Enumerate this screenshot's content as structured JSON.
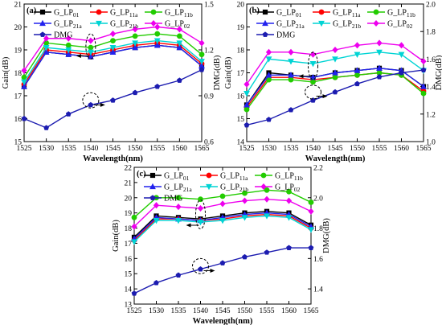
{
  "chart_data": [
    {
      "type": "line",
      "panel_label": "(a)",
      "xlabel": "Wavelength(nm)",
      "ylabel": "Gain(dB)",
      "y2label": "DMG(dB)",
      "x": [
        1525,
        1530,
        1535,
        1540,
        1545,
        1550,
        1555,
        1560,
        1565
      ],
      "xlim": [
        1525,
        1565
      ],
      "ylim": [
        15,
        21
      ],
      "y2lim": [
        0.6,
        1.5
      ],
      "yticks": [
        15,
        16,
        17,
        18,
        19,
        20,
        21
      ],
      "y2ticks": [
        0.6,
        0.9,
        1.2,
        1.5
      ],
      "legend_position": "top",
      "series": [
        {
          "name": "G_LP01",
          "color": "#000000",
          "marker": "square",
          "axis": "left",
          "values": [
            17.4,
            18.9,
            18.8,
            18.7,
            18.9,
            19.1,
            19.2,
            19.1,
            18.3
          ]
        },
        {
          "name": "G_LP11a",
          "color": "#ff0000",
          "marker": "circle",
          "axis": "left",
          "values": [
            17.5,
            19.0,
            18.9,
            18.8,
            19.0,
            19.2,
            19.3,
            19.2,
            18.4
          ]
        },
        {
          "name": "G_LP11b",
          "color": "#22cc00",
          "marker": "circle",
          "axis": "left",
          "values": [
            17.8,
            19.3,
            19.2,
            19.1,
            19.4,
            19.6,
            19.7,
            19.6,
            18.8
          ]
        },
        {
          "name": "G_LP21a",
          "color": "#2222ee",
          "marker": "triangle-up",
          "axis": "left",
          "values": [
            17.4,
            18.9,
            18.8,
            18.7,
            18.9,
            19.1,
            19.2,
            19.1,
            18.3
          ]
        },
        {
          "name": "G_LP21b",
          "color": "#00d4d4",
          "marker": "triangle-down",
          "axis": "left",
          "values": [
            17.6,
            19.1,
            19.0,
            18.9,
            19.1,
            19.3,
            19.4,
            19.3,
            18.5
          ]
        },
        {
          "name": "G_LP02",
          "color": "#ee00ee",
          "marker": "diamond",
          "axis": "left",
          "values": [
            18.1,
            19.5,
            19.5,
            19.4,
            19.7,
            19.9,
            20.0,
            19.9,
            19.3
          ]
        },
        {
          "name": "DMG",
          "color": "#1c1cb0",
          "marker": "pentagon",
          "axis": "right",
          "values": [
            0.75,
            0.69,
            0.78,
            0.84,
            0.87,
            0.92,
            0.96,
            1.0,
            1.07
          ]
        }
      ]
    },
    {
      "type": "line",
      "panel_label": "(b)",
      "xlabel": "Wavelength(nm)",
      "ylabel": "Gain(dB)",
      "y2label": "DMG(dB)",
      "x": [
        1525,
        1530,
        1535,
        1540,
        1545,
        1550,
        1555,
        1560,
        1565
      ],
      "xlim": [
        1525,
        1565
      ],
      "ylim": [
        14,
        20
      ],
      "y2lim": [
        1.0,
        2.0
      ],
      "yticks": [
        14,
        15,
        16,
        17,
        18,
        19,
        20
      ],
      "y2ticks": [
        1.0,
        1.2,
        1.4,
        1.6,
        1.8,
        2.0
      ],
      "legend_position": "top",
      "series": [
        {
          "name": "G_LP01",
          "color": "#000000",
          "marker": "square",
          "axis": "left",
          "values": [
            15.6,
            17.0,
            16.9,
            16.8,
            17.0,
            17.1,
            17.2,
            17.1,
            16.4
          ]
        },
        {
          "name": "G_LP11a",
          "color": "#ff0000",
          "marker": "circle",
          "axis": "left",
          "values": [
            15.5,
            16.8,
            16.8,
            16.7,
            16.8,
            16.9,
            17.0,
            16.9,
            16.2
          ]
        },
        {
          "name": "G_LP11b",
          "color": "#22cc00",
          "marker": "circle",
          "axis": "left",
          "values": [
            15.4,
            16.7,
            16.7,
            16.6,
            16.8,
            16.9,
            17.0,
            16.9,
            16.1
          ]
        },
        {
          "name": "G_LP21a",
          "color": "#2222ee",
          "marker": "triangle-up",
          "axis": "left",
          "values": [
            15.6,
            16.9,
            16.9,
            16.8,
            17.0,
            17.1,
            17.2,
            17.1,
            16.4
          ]
        },
        {
          "name": "G_LP21b",
          "color": "#00d4d4",
          "marker": "triangle-down",
          "axis": "left",
          "values": [
            16.1,
            17.6,
            17.5,
            17.4,
            17.6,
            17.8,
            17.9,
            17.8,
            17.1
          ]
        },
        {
          "name": "G_LP02",
          "color": "#ee00ee",
          "marker": "diamond",
          "axis": "left",
          "values": [
            16.5,
            17.9,
            17.9,
            17.8,
            18.0,
            18.2,
            18.3,
            18.2,
            17.5
          ]
        },
        {
          "name": "DMG",
          "color": "#1c1cb0",
          "marker": "pentagon",
          "axis": "right",
          "values": [
            1.12,
            1.16,
            1.23,
            1.3,
            1.36,
            1.42,
            1.47,
            1.5,
            1.52
          ]
        }
      ]
    },
    {
      "type": "line",
      "panel_label": "(c)",
      "xlabel": "Wavelength(nm)",
      "ylabel": "Gain(dB)",
      "y2label": "DMG(dB)",
      "x": [
        1525,
        1530,
        1535,
        1540,
        1545,
        1550,
        1555,
        1560,
        1565
      ],
      "xlim": [
        1525,
        1565
      ],
      "ylim": [
        13,
        22
      ],
      "y2lim": [
        1.3,
        2.2
      ],
      "yticks": [
        13,
        14,
        15,
        16,
        17,
        18,
        19,
        20,
        21,
        22
      ],
      "y2ticks": [
        1.4,
        1.6,
        1.8,
        2.0,
        2.2
      ],
      "legend_position": "top",
      "series": [
        {
          "name": "G_LP01",
          "color": "#000000",
          "marker": "square",
          "axis": "left",
          "values": [
            17.4,
            18.8,
            18.7,
            18.6,
            18.8,
            19.0,
            19.1,
            19.0,
            18.2
          ]
        },
        {
          "name": "G_LP11a",
          "color": "#ff0000",
          "marker": "circle",
          "axis": "left",
          "values": [
            17.2,
            18.6,
            18.6,
            18.5,
            18.6,
            18.8,
            18.9,
            18.8,
            18.0
          ]
        },
        {
          "name": "G_LP11b",
          "color": "#22cc00",
          "marker": "circle",
          "axis": "left",
          "values": [
            18.7,
            20.0,
            20.0,
            19.9,
            20.1,
            20.3,
            20.5,
            20.4,
            19.7
          ]
        },
        {
          "name": "G_LP21a",
          "color": "#2222ee",
          "marker": "triangle-up",
          "axis": "left",
          "values": [
            17.3,
            18.7,
            18.6,
            18.5,
            18.7,
            18.9,
            19.0,
            18.9,
            18.1
          ]
        },
        {
          "name": "G_LP21b",
          "color": "#00d4d4",
          "marker": "triangle-down",
          "axis": "left",
          "values": [
            17.1,
            18.5,
            18.5,
            18.4,
            18.5,
            18.7,
            18.8,
            18.7,
            17.9
          ]
        },
        {
          "name": "G_LP02",
          "color": "#ee00ee",
          "marker": "diamond",
          "axis": "left",
          "values": [
            18.1,
            19.5,
            19.4,
            19.3,
            19.6,
            19.8,
            19.9,
            19.8,
            19.1
          ]
        },
        {
          "name": "DMG",
          "color": "#1c1cb0",
          "marker": "pentagon",
          "axis": "right",
          "values": [
            1.37,
            1.44,
            1.49,
            1.53,
            1.57,
            1.61,
            1.64,
            1.67,
            1.67
          ]
        }
      ]
    }
  ]
}
